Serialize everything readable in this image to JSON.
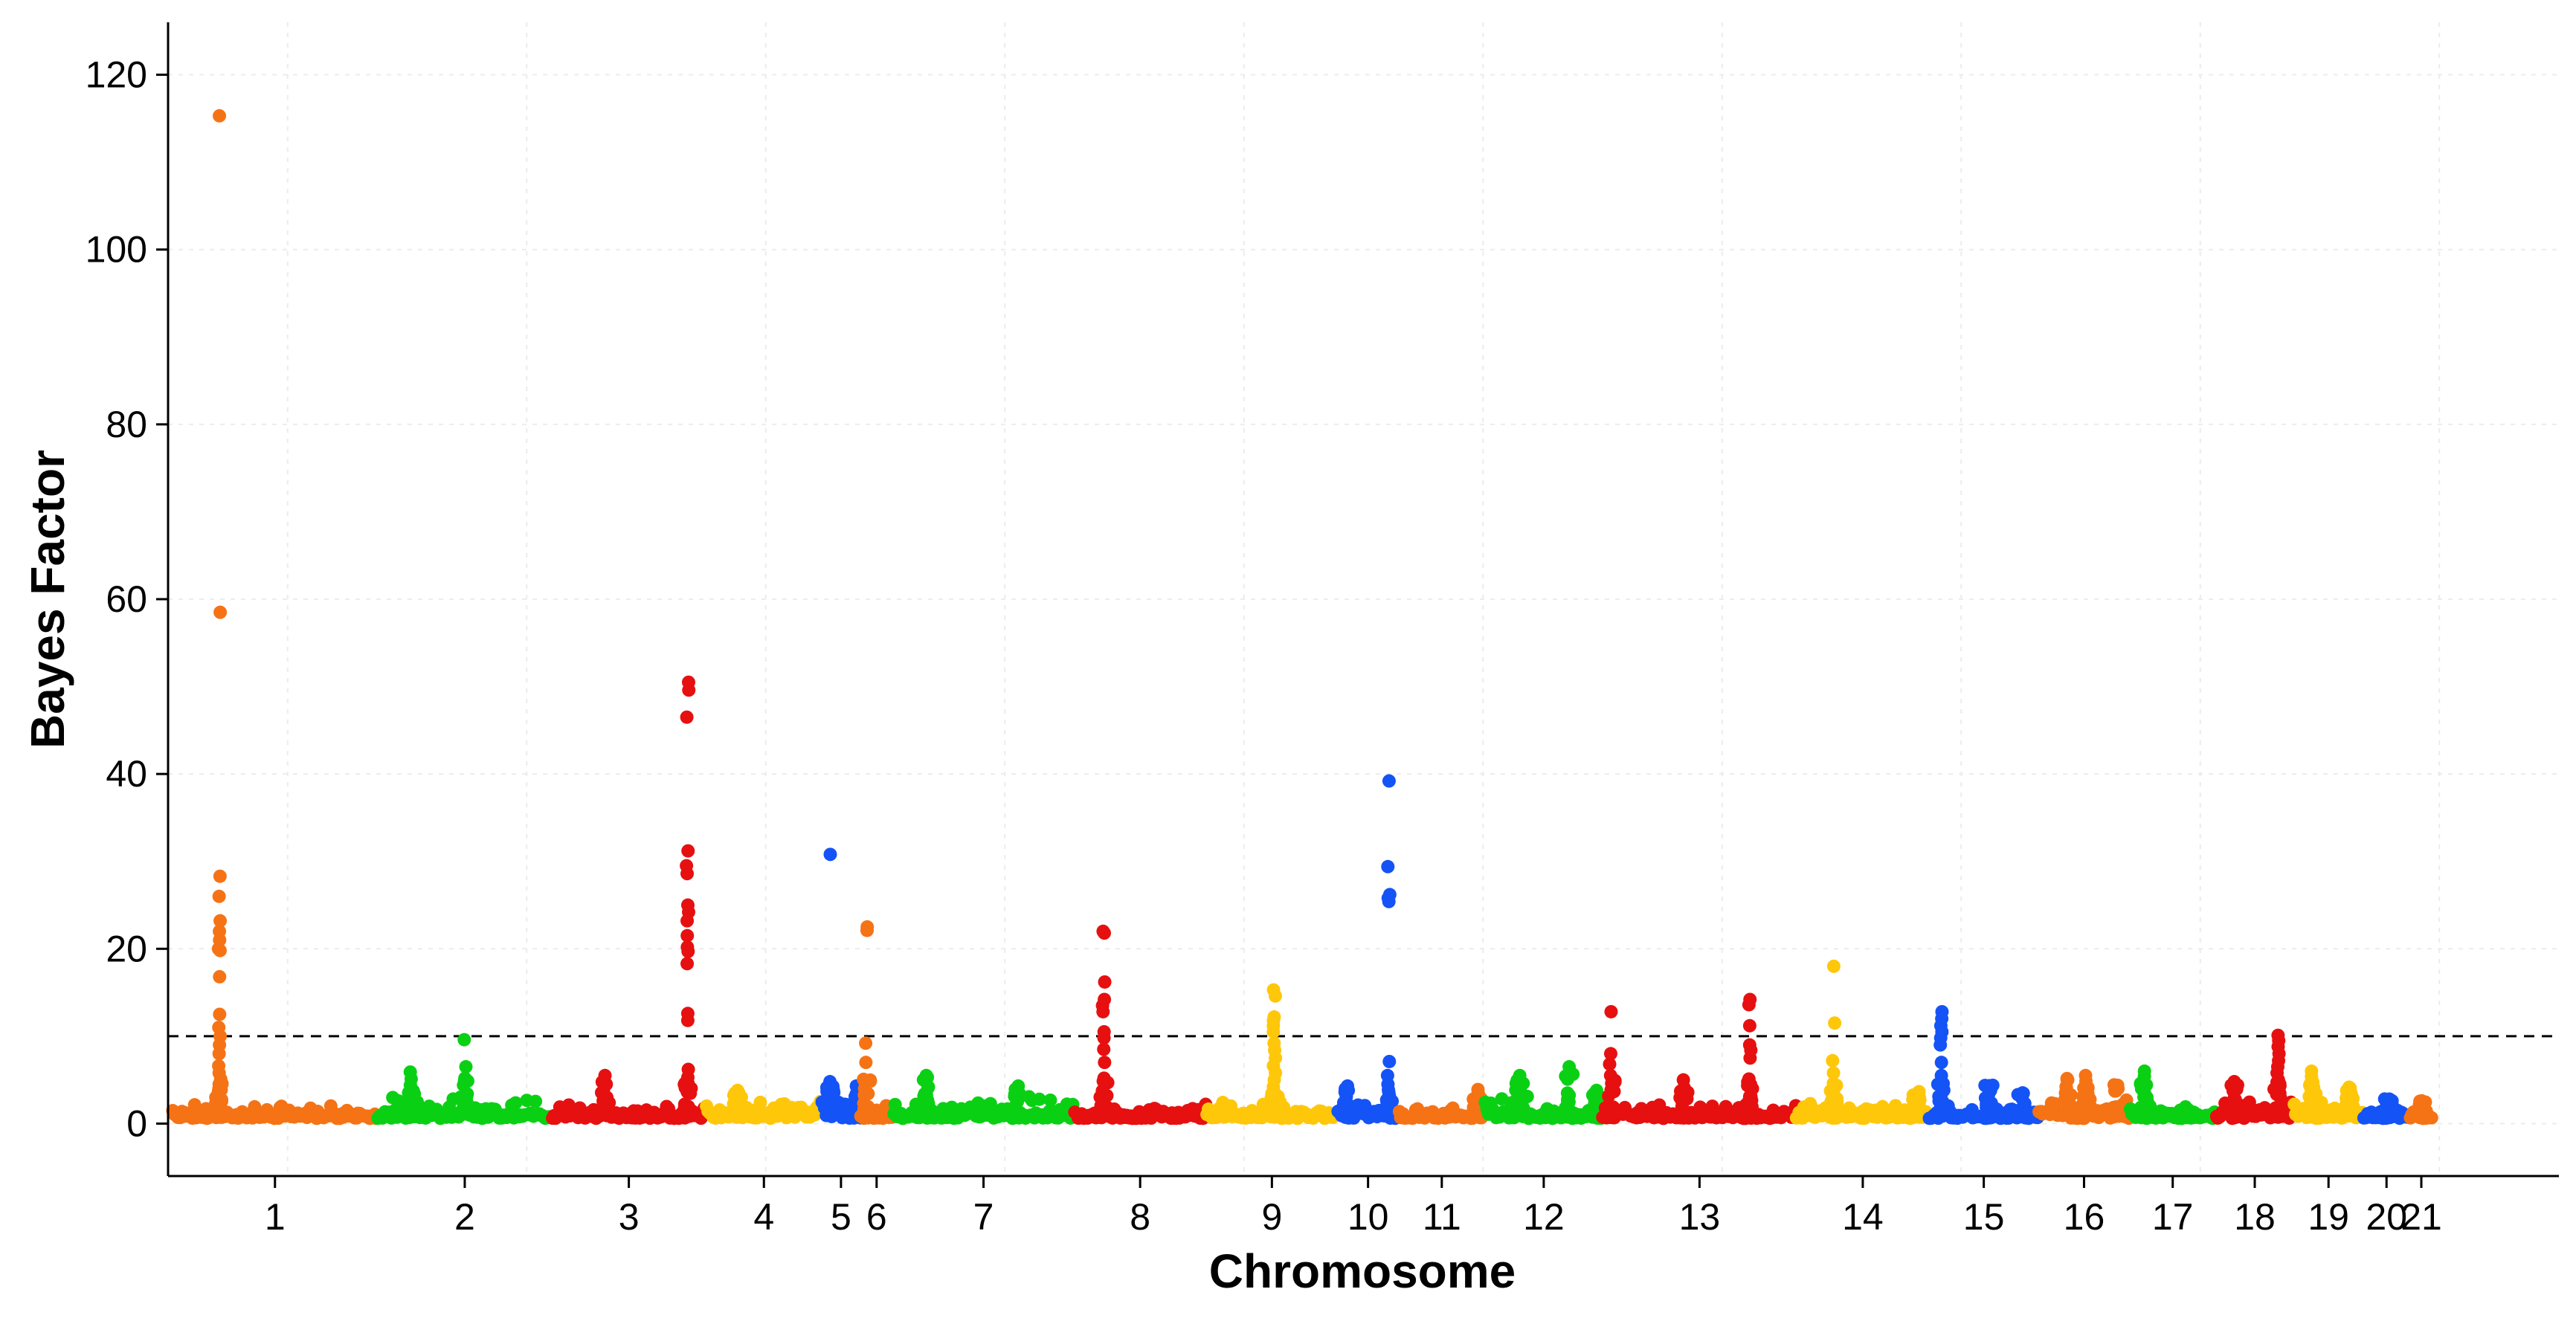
{
  "chart_data": {
    "type": "scatter",
    "subtype": "manhattan",
    "title": "",
    "xlabel": "Chromosome",
    "ylabel": "Bayes Factor",
    "ylim": [
      -6,
      126
    ],
    "yticks": [
      0,
      20,
      40,
      60,
      80,
      100,
      120
    ],
    "ytick_labels": [
      "0",
      "20",
      "40",
      "60",
      "80",
      "100",
      "120"
    ],
    "grid": "dotted light grey",
    "legend": "none",
    "threshold": 10,
    "threshold_style": "dashed",
    "xlim": [
      -5,
      2880
    ],
    "chromosomes": [
      {
        "label": "1",
        "start": 0,
        "end": 248,
        "color": "#F57315",
        "baseline": [
          0.6,
          2.2
        ],
        "peaks": [
          {
            "pos": 57,
            "values": [
              115.3,
              58.5,
              28.3,
              26,
              23.2,
              22,
              21,
              20,
              19.8,
              16.8,
              12.5,
              11,
              10,
              9,
              8,
              6.6,
              5.8,
              5.1,
              4.5,
              4
            ]
          }
        ]
      },
      {
        "label": "2",
        "start": 248,
        "end": 458,
        "color": "#0AD014",
        "baseline": [
          0.6,
          3.2
        ],
        "peaks": [
          {
            "pos": 105,
            "values": [
              9.6,
              6.5,
              5.2,
              4.4
            ]
          },
          {
            "pos": 40,
            "values": [
              5.9,
              5.1,
              4.4
            ]
          }
        ]
      },
      {
        "label": "3",
        "start": 458,
        "end": 644,
        "color": "#E61010",
        "baseline": [
          0.6,
          2.4
        ],
        "peaks": [
          {
            "pos": 164,
            "values": [
              50.5,
              49.6,
              46.5,
              31.2,
              29.5,
              28.6,
              25,
              24.2,
              23.2,
              21.5,
              20.2,
              19.7,
              18.3,
              12.6,
              11.8,
              6.2,
              5.3,
              4.6
            ]
          },
          {
            "pos": 65,
            "values": [
              5.5,
              4.5
            ]
          }
        ]
      },
      {
        "label": "4",
        "start": 644,
        "end": 784,
        "color": "#FFC70A",
        "baseline": [
          0.6,
          2.8
        ],
        "peaks": [
          {
            "pos": 38,
            "values": [
              3.8,
              3.1
            ]
          }
        ]
      },
      {
        "label": "5",
        "start": 784,
        "end": 830,
        "color": "#1453F5",
        "baseline": [
          0.6,
          3.2
        ],
        "peaks": [
          {
            "pos": 10,
            "values": [
              30.8,
              4.8,
              4.2
            ]
          },
          {
            "pos": 42,
            "values": [
              4.3,
              3.6
            ]
          }
        ]
      },
      {
        "label": "6",
        "start": 830,
        "end": 870,
        "color": "#F57315",
        "baseline": [
          0.6,
          2.8
        ],
        "peaks": [
          {
            "pos": 8,
            "values": [
              22.5,
              22.1,
              9.2,
              7
            ]
          }
        ]
      },
      {
        "label": "7",
        "start": 870,
        "end": 1088,
        "color": "#0AD014",
        "baseline": [
          0.6,
          3.2
        ],
        "peaks": [
          {
            "pos": 40,
            "values": [
              5.5,
              4.8
            ]
          },
          {
            "pos": 150,
            "values": [
              4.3,
              3.5
            ]
          }
        ]
      },
      {
        "label": "8",
        "start": 1088,
        "end": 1248,
        "color": "#E61010",
        "baseline": [
          0.6,
          2.4
        ],
        "peaks": [
          {
            "pos": 36,
            "values": [
              22,
              21.8,
              16.2,
              14.2,
              13.5,
              12.8,
              10.5,
              9.8,
              8.5,
              7,
              5.2,
              4.5
            ]
          }
        ]
      },
      {
        "label": "9",
        "start": 1248,
        "end": 1406,
        "color": "#FFC70A",
        "baseline": [
          0.6,
          2.8
        ],
        "peaks": [
          {
            "pos": 82,
            "values": [
              15.3,
              14.6,
              12.2,
              11.8,
              11.2,
              10.5,
              9.2,
              8.4,
              7.5,
              6.6,
              5.8,
              5,
              4.2,
              3.6,
              3
            ]
          }
        ]
      },
      {
        "label": "10",
        "start": 1406,
        "end": 1480,
        "color": "#1453F5",
        "baseline": [
          0.6,
          3.2
        ],
        "peaks": [
          {
            "pos": 62,
            "values": [
              39.2,
              29.4,
              26.2,
              25.8,
              25.4,
              7.1,
              5.5,
              4.5,
              3.6
            ]
          },
          {
            "pos": 12,
            "values": [
              4.3,
              3.8
            ]
          }
        ]
      },
      {
        "label": "11",
        "start": 1480,
        "end": 1584,
        "color": "#F57315",
        "baseline": [
          0.6,
          1.8
        ],
        "peaks": [
          {
            "pos": 95,
            "values": [
              3.9,
              3.5,
              3
            ]
          }
        ]
      },
      {
        "label": "12",
        "start": 1584,
        "end": 1726,
        "color": "#0AD014",
        "baseline": [
          0.6,
          3.2
        ],
        "peaks": [
          {
            "pos": 102,
            "values": [
              6.5
            ]
          },
          {
            "pos": 42,
            "values": [
              5.5,
              4.7
            ]
          },
          {
            "pos": 135,
            "values": [
              3.8,
              3.1
            ]
          }
        ]
      },
      {
        "label": "13",
        "start": 1726,
        "end": 1960,
        "color": "#E61010",
        "baseline": [
          0.6,
          2.6
        ],
        "peaks": [
          {
            "pos": 10,
            "values": [
              12.8,
              8,
              6.8,
              5.5,
              4.6
            ]
          },
          {
            "pos": 178,
            "values": [
              14.2,
              13.6,
              11.2,
              9,
              8.4,
              7.5,
              5.1,
              4.2
            ]
          },
          {
            "pos": 98,
            "values": [
              5,
              4.1
            ]
          }
        ]
      },
      {
        "label": "14",
        "start": 1960,
        "end": 2120,
        "color": "#FFC70A",
        "baseline": [
          0.6,
          2.6
        ],
        "peaks": [
          {
            "pos": 45,
            "values": [
              18,
              11.5,
              7.2,
              5.8,
              4.6,
              3.8
            ]
          },
          {
            "pos": 145,
            "values": [
              3.4
            ]
          }
        ]
      },
      {
        "label": "15",
        "start": 2120,
        "end": 2252,
        "color": "#1453F5",
        "baseline": [
          0.6,
          2.2
        ],
        "peaks": [
          {
            "pos": 15,
            "values": [
              12.8,
              12,
              11.2,
              10.5,
              9.8,
              9,
              7,
              5.5,
              4.2
            ]
          },
          {
            "pos": 72,
            "values": [
              4
            ]
          },
          {
            "pos": 112,
            "values": [
              3.2
            ]
          }
        ]
      },
      {
        "label": "16",
        "start": 2252,
        "end": 2362,
        "color": "#F57315",
        "baseline": [
          0.6,
          3.2
        ],
        "peaks": [
          {
            "pos": 35,
            "values": [
              5
            ]
          },
          {
            "pos": 58,
            "values": [
              5.5
            ]
          },
          {
            "pos": 95,
            "values": [
              4
            ]
          }
        ]
      },
      {
        "label": "17",
        "start": 2362,
        "end": 2466,
        "color": "#0AD014",
        "baseline": [
          0.6,
          2.4
        ],
        "peaks": [
          {
            "pos": 18,
            "values": [
              6,
              5.4,
              4.6
            ]
          }
        ]
      },
      {
        "label": "18",
        "start": 2466,
        "end": 2560,
        "color": "#E61010",
        "baseline": [
          0.6,
          2.8
        ],
        "peaks": [
          {
            "pos": 75,
            "values": [
              10.1,
              9.5,
              8.8,
              8,
              7.2,
              6.5,
              5.8,
              5,
              4.3
            ]
          },
          {
            "pos": 22,
            "values": [
              4.8,
              4.2
            ]
          }
        ]
      },
      {
        "label": "19",
        "start": 2560,
        "end": 2644,
        "color": "#FFC70A",
        "baseline": [
          0.6,
          2.6
        ],
        "peaks": [
          {
            "pos": 22,
            "values": [
              6,
              5.4,
              4.6
            ]
          },
          {
            "pos": 68,
            "values": [
              3.6
            ]
          }
        ]
      },
      {
        "label": "20",
        "start": 2644,
        "end": 2700,
        "color": "#1453F5",
        "baseline": [
          0.6,
          1.8
        ],
        "peaks": [
          {
            "pos": 30,
            "values": [
              2.8,
              2.4
            ]
          }
        ]
      },
      {
        "label": "21",
        "start": 2700,
        "end": 2728,
        "color": "#F57315",
        "baseline": [
          0.6,
          2
        ],
        "peaks": [
          {
            "pos": 15,
            "values": [
              2.6,
              2.2
            ]
          }
        ]
      }
    ]
  }
}
